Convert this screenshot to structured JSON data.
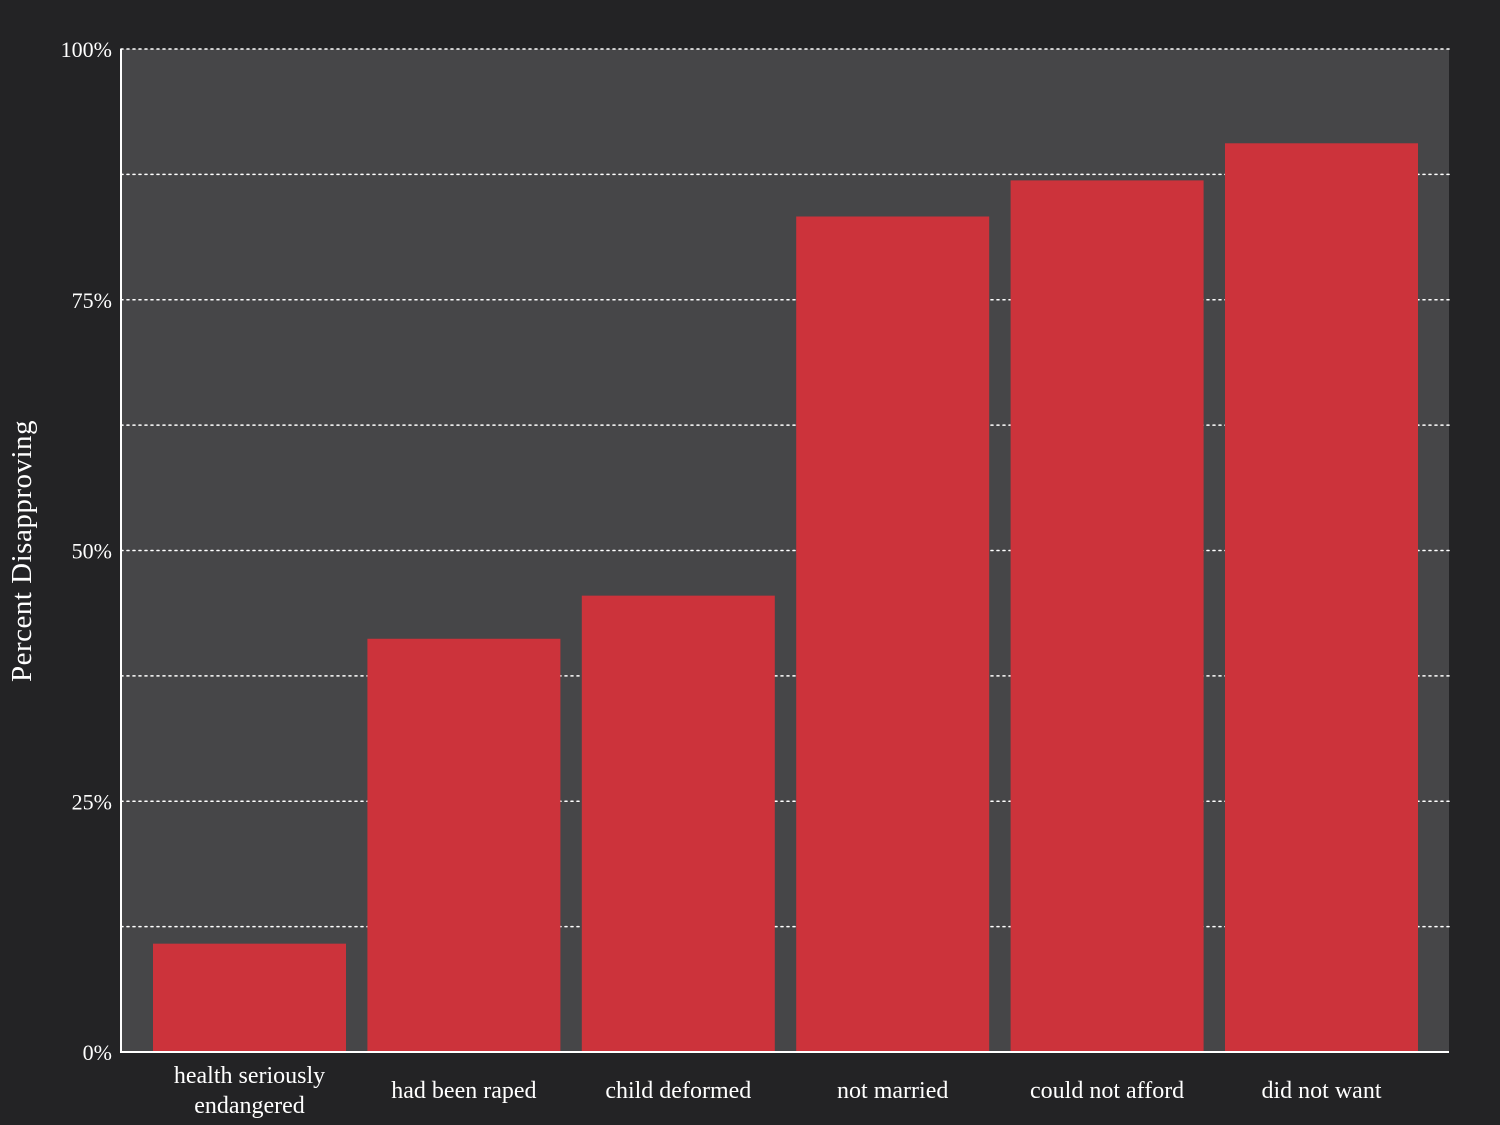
{
  "chart_data": {
    "type": "bar",
    "title": "",
    "xlabel": "",
    "ylabel": "Percent Disapproving",
    "ylim": [
      0,
      1
    ],
    "yticks": [
      0,
      0.25,
      0.5,
      0.75,
      1
    ],
    "ytick_labels": [
      "0%",
      "25%",
      "50%",
      "75%",
      "100%"
    ],
    "minor_gridlines": [
      0.125,
      0.375,
      0.625,
      0.875
    ],
    "grid": true,
    "categories": [
      [
        "health seriously",
        "endangered"
      ],
      [
        "had been raped"
      ],
      [
        "child deformed"
      ],
      [
        "not married"
      ],
      [
        "could not afford"
      ],
      [
        "did not want"
      ]
    ],
    "values": [
      0.108,
      0.412,
      0.455,
      0.833,
      0.869,
      0.906
    ],
    "colors": {
      "bar": "#cc333b",
      "plot_background": "#464648",
      "page_background": "#232325",
      "grid": "#ffffff",
      "text": "#ffffff"
    }
  }
}
